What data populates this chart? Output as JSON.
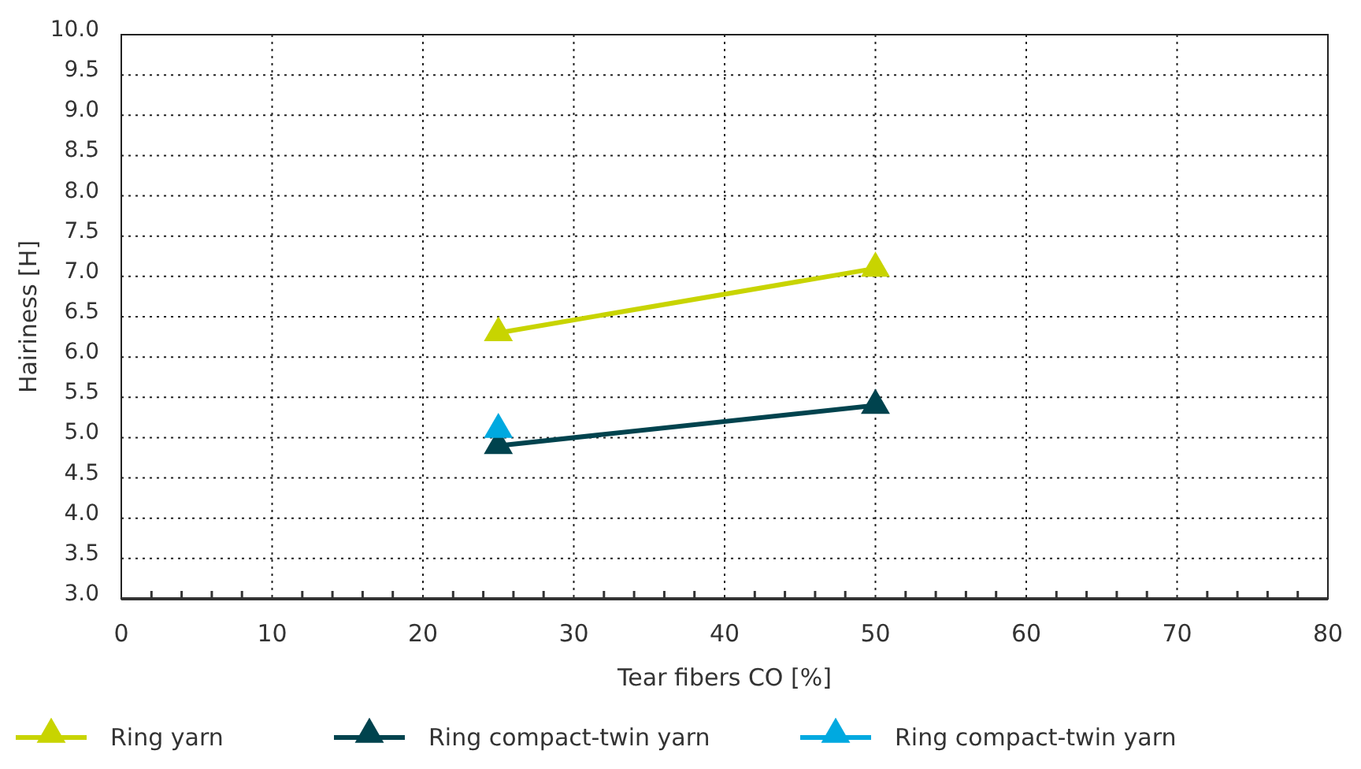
{
  "chart_data": {
    "type": "line",
    "xlabel": "Tear fibers CO [%]",
    "ylabel": "Hairiness [H]",
    "xlim": [
      0,
      80
    ],
    "ylim": [
      3,
      10
    ],
    "xticks": [
      0,
      {
        "value": 2,
        "label": null
      },
      {
        "value": 4,
        "label": null
      },
      {
        "value": 6,
        "label": null
      },
      {
        "value": 8,
        "label": null
      },
      10,
      {
        "value": 12,
        "label": null
      },
      {
        "value": 14,
        "label": null
      },
      {
        "value": 16,
        "label": null
      },
      {
        "value": 18,
        "label": null
      },
      20,
      {
        "value": 22,
        "label": null
      },
      {
        "value": 24,
        "label": null
      },
      {
        "value": 26,
        "label": null
      },
      {
        "value": 28,
        "label": null
      },
      30,
      {
        "value": 32,
        "label": null
      },
      {
        "value": 34,
        "label": null
      },
      {
        "value": 36,
        "label": null
      },
      {
        "value": 38,
        "label": null
      },
      40,
      {
        "value": 42,
        "label": null
      },
      {
        "value": 44,
        "label": null
      },
      {
        "value": 46,
        "label": null
      },
      {
        "value": 48,
        "label": null
      },
      50,
      {
        "value": 52,
        "label": null
      },
      {
        "value": 54,
        "label": null
      },
      {
        "value": 56,
        "label": null
      },
      {
        "value": 58,
        "label": null
      },
      60,
      {
        "value": 62,
        "label": null
      },
      {
        "value": 64,
        "label": null
      },
      {
        "value": 66,
        "label": null
      },
      {
        "value": 68,
        "label": null
      },
      70,
      {
        "value": 72,
        "label": null
      },
      {
        "value": 74,
        "label": null
      },
      {
        "value": 76,
        "label": null
      },
      {
        "value": 78,
        "label": null
      },
      80
    ],
    "yticks": [
      {
        "value": 3,
        "label": "3.0"
      },
      3.5,
      {
        "value": 4,
        "label": "4.0"
      },
      4.5,
      {
        "value": 5,
        "label": "5.0"
      },
      5.5,
      {
        "value": 6,
        "label": "6.0"
      },
      6.5,
      {
        "value": 7,
        "label": "7.0"
      },
      7.5,
      {
        "value": 8,
        "label": "8.0"
      },
      8.5,
      {
        "value": 9,
        "label": "9.0"
      },
      9.5,
      {
        "value": 10,
        "label": "10.0"
      }
    ],
    "grid": true,
    "legend": "bottom",
    "marker": "triangle",
    "line_style": "solid",
    "x": [
      25,
      50
    ],
    "series": [
      {
        "name": "Ring yarn",
        "color": "#c8d400",
        "values": [
          6.3,
          7.1
        ]
      },
      {
        "name": "Ring compact-twin yarn",
        "color": "#00434e",
        "values": [
          4.9,
          5.4
        ]
      },
      {
        "name": "Ring compact-twin yarn",
        "color": "#00a9e0",
        "values": [
          5.1,
          null
        ]
      }
    ]
  }
}
